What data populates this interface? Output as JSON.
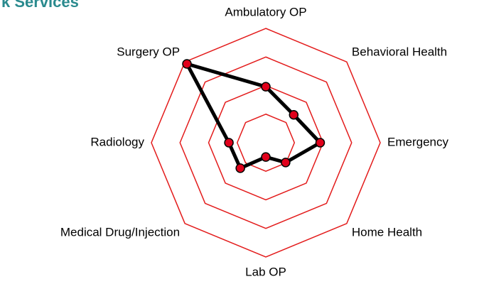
{
  "chart_data": {
    "type": "radar",
    "title": "k Services",
    "categories": [
      "Ambulatory OP",
      "Behavioral Health",
      "Emergency",
      "Home Health",
      "Lab OP",
      "Medical Drug/Injection",
      "Radiology",
      "Surgery OP"
    ],
    "values": [
      1.96,
      1.38,
      1.9,
      0.98,
      0.5,
      1.26,
      1.29,
      3.9
    ],
    "ylim": [
      0,
      4
    ],
    "yticks": [
      1,
      2,
      3,
      4
    ],
    "color": "#000000",
    "marker_color": "#e0001b",
    "grid_color": "#e31b1b"
  }
}
